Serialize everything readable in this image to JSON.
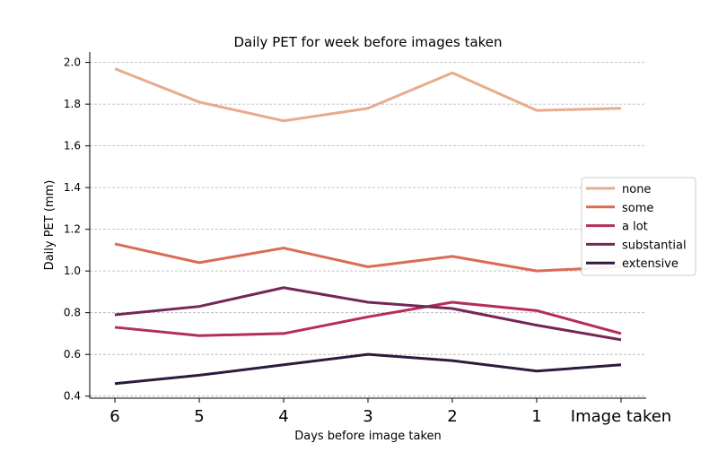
{
  "chart_data": {
    "type": "line",
    "title": "Daily PET for week before images taken",
    "xlabel": "Days before image taken",
    "ylabel": "Daily PET (mm)",
    "categories": [
      "6",
      "5",
      "4",
      "3",
      "2",
      "1",
      "Image taken"
    ],
    "ylim": [
      0.39,
      2.05
    ],
    "yticks": [
      "0.4",
      "0.6",
      "0.8",
      "1.0",
      "1.2",
      "1.4",
      "1.6",
      "1.8",
      "2.0"
    ],
    "ytick_values": [
      0.4,
      0.6,
      0.8,
      1.0,
      1.2,
      1.4,
      1.6,
      1.8,
      2.0
    ],
    "grid": "horizontal",
    "legend_position": "center-right",
    "series": [
      {
        "name": "none",
        "color": "#e8ab8c",
        "values": [
          1.97,
          1.81,
          1.72,
          1.78,
          1.95,
          1.77,
          1.78
        ]
      },
      {
        "name": "some",
        "color": "#db6b55",
        "values": [
          1.13,
          1.04,
          1.11,
          1.02,
          1.07,
          1.0,
          1.02
        ]
      },
      {
        "name": "a lot",
        "color": "#b42d5b",
        "values": [
          0.73,
          0.69,
          0.7,
          0.78,
          0.85,
          0.81,
          0.7
        ]
      },
      {
        "name": "substantial",
        "color": "#762558",
        "values": [
          0.79,
          0.83,
          0.92,
          0.85,
          0.82,
          0.74,
          0.67
        ]
      },
      {
        "name": "extensive",
        "color": "#2d1a3d",
        "values": [
          0.46,
          0.5,
          0.55,
          0.6,
          0.57,
          0.52,
          0.55
        ]
      }
    ]
  }
}
